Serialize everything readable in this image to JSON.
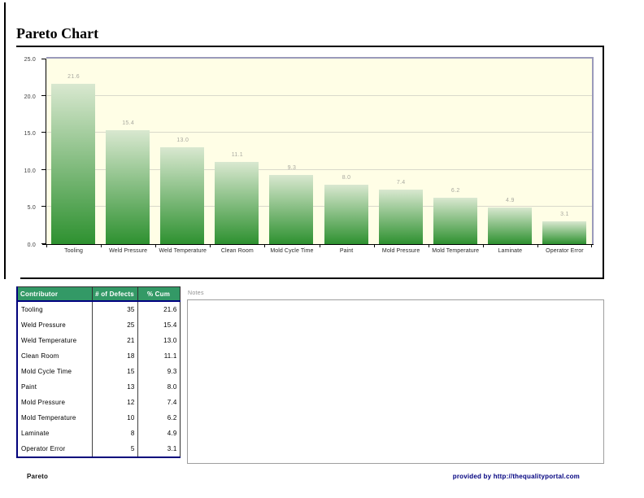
{
  "page": {
    "title": "Pareto Chart",
    "footer_left": "Pareto",
    "footer_right": "provided by http://thequalityportal.com"
  },
  "chart_data": {
    "type": "bar",
    "title": "Pareto Chart",
    "categories": [
      "Tooling",
      "Weld Pressure",
      "Weld Temperature",
      "Clean Room",
      "Mold Cycle Time",
      "Paint",
      "Mold Pressure",
      "Mold Temperature",
      "Laminate",
      "Operator Error"
    ],
    "values": [
      21.6,
      15.4,
      13.0,
      11.1,
      9.3,
      8.0,
      7.4,
      6.2,
      4.9,
      3.1
    ],
    "xlabel": "",
    "ylabel": "",
    "ylim": [
      0,
      25
    ],
    "yticks": [
      0,
      5,
      10,
      15,
      20,
      25
    ],
    "grid": true,
    "legend": "none",
    "plot_bg": "#fffee6",
    "bar_color_top": "#d9e8d0",
    "bar_color_bottom": "#2e9130",
    "value_label_color": "#a9a9a0"
  },
  "table": {
    "header_bg": "#339966",
    "headers": [
      "Contributor",
      "# of Defects",
      "% Cum"
    ],
    "rows": [
      [
        "Tooling",
        "35",
        "21.6"
      ],
      [
        "Weld Pressure",
        "25",
        "15.4"
      ],
      [
        "Weld Temperature",
        "21",
        "13.0"
      ],
      [
        "Clean Room",
        "18",
        "11.1"
      ],
      [
        "Mold Cycle Time",
        "15",
        "9.3"
      ],
      [
        "Paint",
        "13",
        "8.0"
      ],
      [
        "Mold Pressure",
        "12",
        "7.4"
      ],
      [
        "Mold Temperature",
        "10",
        "6.2"
      ],
      [
        "Laminate",
        "8",
        "4.9"
      ],
      [
        "Operator Error",
        "5",
        "3.1"
      ]
    ]
  },
  "notes": {
    "label": "Notes"
  }
}
